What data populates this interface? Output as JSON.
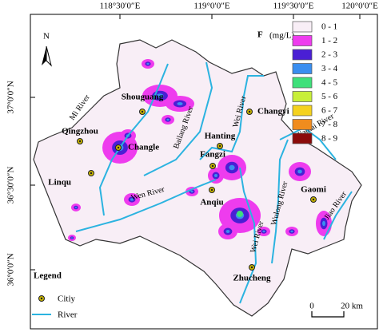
{
  "axes": {
    "longitude": [
      "118°30′0″E",
      "119°0′0″E",
      "119°30′0″E",
      "120°0′0″E"
    ],
    "latitude": [
      "37°0′0″N",
      "36°30′0″N",
      "36°0′0″N"
    ]
  },
  "north": "N",
  "classes": {
    "title": "F",
    "unit": "(mg/L)",
    "items": [
      {
        "label": "0 - 1",
        "color": "#f8eef6"
      },
      {
        "label": "1 - 2",
        "color": "#ee3cee"
      },
      {
        "label": "2 - 3",
        "color": "#4a1fd4"
      },
      {
        "label": "3 - 4",
        "color": "#3a8ef0"
      },
      {
        "label": "4 - 5",
        "color": "#3ee07a"
      },
      {
        "label": "5 - 6",
        "color": "#c8ef3a"
      },
      {
        "label": "6 - 7",
        "color": "#f5d21e"
      },
      {
        "label": "7 - 8",
        "color": "#f08c1e"
      },
      {
        "label": "8 - 9",
        "color": "#8b0a0a"
      }
    ]
  },
  "cities": [
    "Shouguang",
    "Changyi",
    "Qingzhou",
    "Changle",
    "Hanting",
    "Linqu",
    "Fangzi",
    "Anqiu",
    "Gaomi",
    "Zhucheng"
  ],
  "rivers": [
    "Mi River",
    "Bailang River",
    "Wei River",
    "Jiaolai River",
    "Wen River",
    "Wulong River",
    "Wei River",
    "Jiao River"
  ],
  "legend": {
    "title": "Legend",
    "city": "Citiy",
    "river": "River"
  },
  "scale": {
    "start": "0",
    "end": "20 km"
  }
}
